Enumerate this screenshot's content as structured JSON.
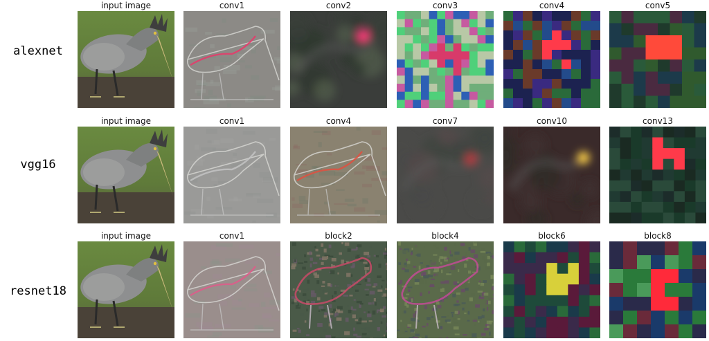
{
  "figure": {
    "rows": [
      {
        "label": "alexnet",
        "panels": [
          {
            "title": "input image",
            "kind": "bird"
          },
          {
            "title": "conv1",
            "kind": "edge",
            "palette": [
              "#8c8a86",
              "#9aa09a",
              "#7e8a80"
            ],
            "accent": "#e8386a"
          },
          {
            "title": "conv2",
            "kind": "blur",
            "palette": [
              "#3a3d3a",
              "#505a4a",
              "#2e3a30"
            ],
            "accent": "#ff3a7a"
          },
          {
            "title": "conv3",
            "kind": "grid",
            "cells": 12,
            "palette": [
              "#6fae7a",
              "#2d5fb5",
              "#c65aa0",
              "#4fd07a",
              "#b8c8a6"
            ],
            "accent": "#d83a6a"
          },
          {
            "title": "conv4",
            "kind": "grid",
            "cells": 10,
            "palette": [
              "#1c2250",
              "#3a2a80",
              "#2a6a3a",
              "#6a3a2a",
              "#234b8b"
            ],
            "accent": "#ff3a4a"
          },
          {
            "title": "conv5",
            "kind": "grid",
            "cells": 8,
            "palette": [
              "#1f3a2c",
              "#2a5a3a",
              "#4a2a40",
              "#1c3a4a",
              "#305a2e"
            ],
            "accent": "#ff4a3a"
          }
        ]
      },
      {
        "label": "vgg16",
        "panels": [
          {
            "title": "input image",
            "kind": "bird"
          },
          {
            "title": "conv1",
            "kind": "edge",
            "palette": [
              "#9a9a98",
              "#a2a4a0",
              "#8e918f"
            ],
            "accent": "#c3c3c3"
          },
          {
            "title": "conv4",
            "kind": "edge",
            "palette": [
              "#8a8270",
              "#6e7868",
              "#8a6a62"
            ],
            "accent": "#e05040"
          },
          {
            "title": "conv7",
            "kind": "blur",
            "palette": [
              "#4a4a48",
              "#3e4540",
              "#544a4a"
            ],
            "accent": "#b03a40"
          },
          {
            "title": "conv10",
            "kind": "blur",
            "palette": [
              "#3a2a2a",
              "#302a26",
              "#3e3030"
            ],
            "accent": "#ffd24a"
          },
          {
            "title": "conv13",
            "kind": "grid",
            "cells": 9,
            "palette": [
              "#1a3a2a",
              "#203a32",
              "#1c2c2a",
              "#2a4a3a",
              "#1a2a22"
            ],
            "accent": "#ff3a4a"
          }
        ]
      },
      {
        "label": "resnet18",
        "panels": [
          {
            "title": "input image",
            "kind": "bird"
          },
          {
            "title": "conv1",
            "kind": "edge",
            "palette": [
              "#9a8e8c",
              "#a08a94",
              "#8a968a"
            ],
            "accent": "#e05a8a"
          },
          {
            "title": "block2",
            "kind": "noise",
            "palette": [
              "#4a5a48",
              "#6a5a6a",
              "#3a4a3a",
              "#8a7a6a"
            ],
            "accent": "#d04a6a"
          },
          {
            "title": "block4",
            "kind": "noise",
            "palette": [
              "#5a6a4a",
              "#6a4a6a",
              "#4a5a5a",
              "#7a8a5a"
            ],
            "accent": "#c84a9a"
          },
          {
            "title": "block6",
            "kind": "grid",
            "cells": 9,
            "palette": [
              "#1e4a3a",
              "#5a1a3a",
              "#2a6a3a",
              "#3a2a4a",
              "#1a3a4a"
            ],
            "accent": "#d8d03a"
          },
          {
            "title": "block8",
            "kind": "grid",
            "cells": 7,
            "palette": [
              "#1a3a6a",
              "#2a7a3a",
              "#4a9a5a",
              "#2a2a4a",
              "#6a2a3a"
            ],
            "accent": "#ff2a3a"
          }
        ]
      }
    ]
  },
  "colors": {
    "bird_sky": "#5f7a3a",
    "bird_ground": "#4a4238",
    "bird_body": "#8e8f90",
    "bird_crest": "#3e3e3e"
  }
}
